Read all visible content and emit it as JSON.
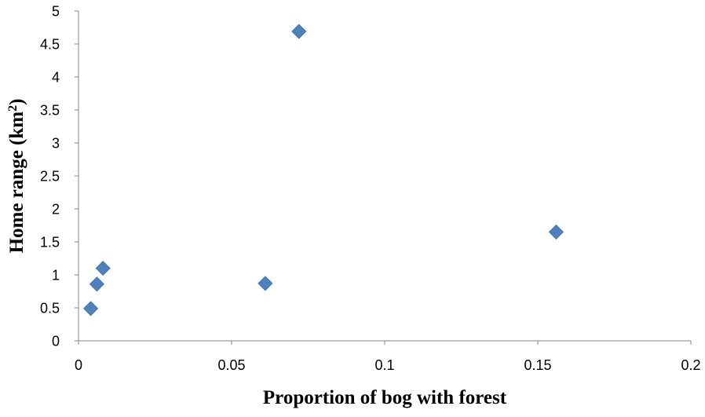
{
  "chart_data": {
    "type": "scatter",
    "title": "",
    "xlabel": "Proportion of bog with forest",
    "ylabel": "Home range (km²)",
    "xlim": [
      0,
      0.2
    ],
    "ylim": [
      0,
      5
    ],
    "x_ticks": [
      0,
      0.05,
      0.1,
      0.15,
      0.2
    ],
    "x_tick_labels": [
      "0",
      "0.05",
      "0.1",
      "0.15",
      "0.2"
    ],
    "y_ticks": [
      0,
      0.5,
      1,
      1.5,
      2,
      2.5,
      3,
      3.5,
      4,
      4.5,
      5
    ],
    "y_tick_labels": [
      "0",
      "0.5",
      "1",
      "1.5",
      "2",
      "2.5",
      "3",
      "3.5",
      "4",
      "4.5",
      "5"
    ],
    "grid": false,
    "legend": "none",
    "marker": "diamond",
    "marker_color": "#4F81BD",
    "series": [
      {
        "points": [
          {
            "x": 0.004,
            "y": 0.49
          },
          {
            "x": 0.006,
            "y": 0.86
          },
          {
            "x": 0.008,
            "y": 1.1
          },
          {
            "x": 0.061,
            "y": 0.87
          },
          {
            "x": 0.072,
            "y": 4.69
          },
          {
            "x": 0.156,
            "y": 1.65
          }
        ]
      }
    ]
  }
}
